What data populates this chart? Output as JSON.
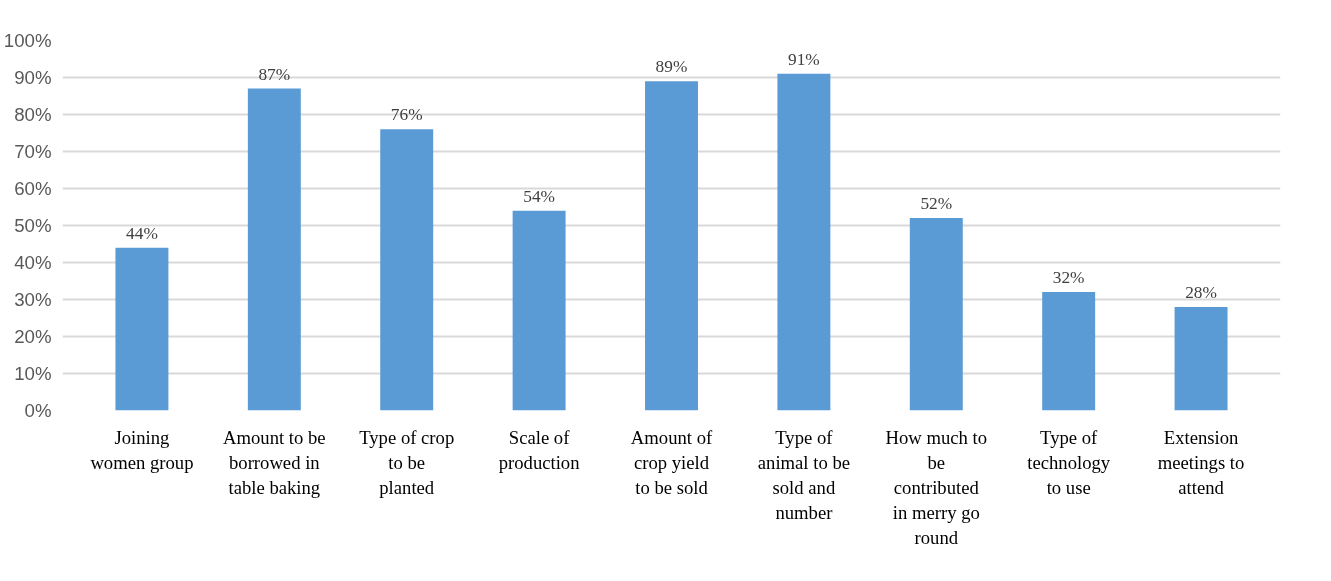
{
  "chart_data": {
    "type": "bar",
    "categories": [
      "Joining women group",
      "Amount to be borrowed in table baking",
      "Type of crop to be planted",
      "Scale of production",
      "Amount of crop yield to be sold",
      "Type of animal to be sold and number",
      "How much to be contributed in merry go round",
      "Type of technology to use",
      "Extension meetings to attend"
    ],
    "values": [
      44,
      87,
      76,
      54,
      89,
      91,
      52,
      32,
      28
    ],
    "value_labels": [
      "44%",
      "87%",
      "76%",
      "54%",
      "89%",
      "91%",
      "52%",
      "32%",
      "28%"
    ],
    "color": "#5b9bd5",
    "ylim": [
      0,
      100
    ],
    "yticks": [
      {
        "value": 0,
        "label": "0%"
      },
      {
        "value": 10,
        "label": "10%"
      },
      {
        "value": 20,
        "label": "20%"
      },
      {
        "value": 30,
        "label": "30%"
      },
      {
        "value": 40,
        "label": "40%"
      },
      {
        "value": 50,
        "label": "50%"
      },
      {
        "value": 60,
        "label": "60%"
      },
      {
        "value": 70,
        "label": "70%"
      },
      {
        "value": 80,
        "label": "80%"
      },
      {
        "value": 90,
        "label": "90%"
      },
      {
        "value": 100,
        "label": "100%"
      }
    ],
    "grid": "y"
  }
}
